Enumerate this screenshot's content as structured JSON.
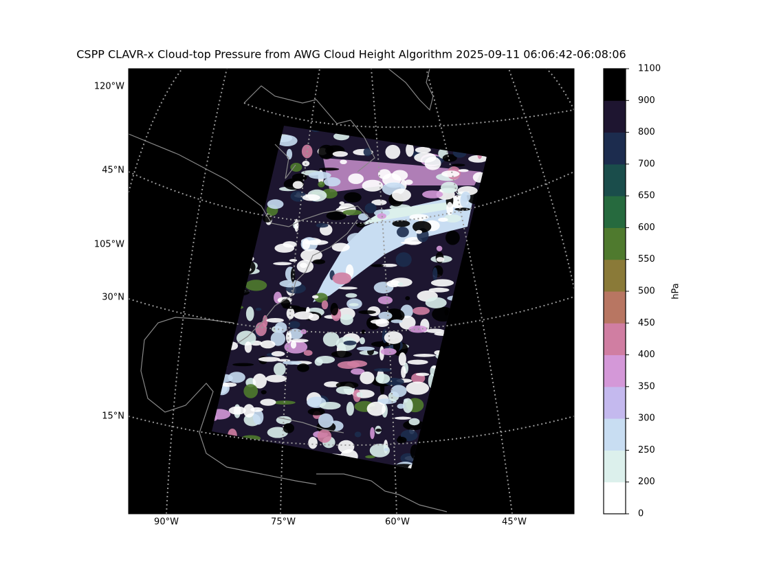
{
  "header": {
    "title": "CSPP CLAVR-x Cloud-top Pressure from AWG Cloud Height Algorithm 2025-09-11 06:06:42-06:08:06"
  },
  "map": {
    "labels": [
      "120°W",
      "45°N",
      "105°W",
      "30°N",
      "15°N",
      "90°W",
      "75°W",
      "60°W",
      "45°W"
    ]
  },
  "colorbar": {
    "label": "hPa",
    "ticks": [
      0,
      200,
      250,
      300,
      350,
      400,
      450,
      500,
      550,
      600,
      650,
      700,
      800,
      900,
      1100
    ],
    "colors": [
      "#ffffff",
      "#dcf0ec",
      "#c8ddf2",
      "#c4b9ee",
      "#d498d8",
      "#d07ea2",
      "#b87662",
      "#8a7a38",
      "#4f7a2e",
      "#266a3e",
      "#1a4d4b",
      "#1c2c4e",
      "#1e1530",
      "#000000"
    ]
  }
}
